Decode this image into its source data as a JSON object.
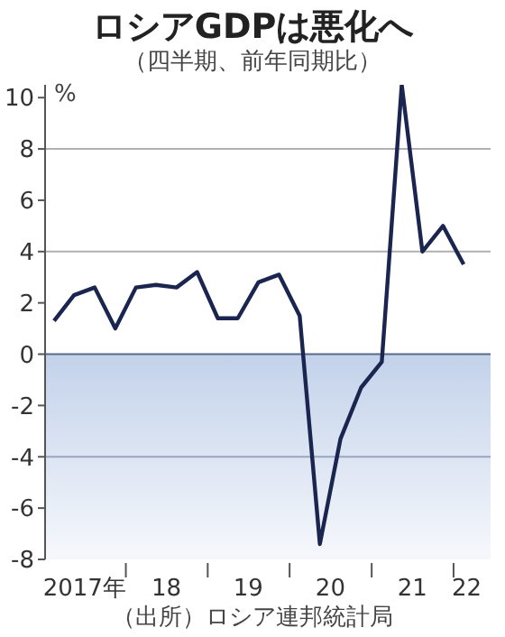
{
  "chart_data": {
    "type": "line",
    "title": "ロシアGDPは悪化へ",
    "subtitle": "（四半期、前年同期比）",
    "ylabel": "%",
    "annotations": [
      "（出所）ロシア連邦統計局"
    ],
    "x": [
      "2017-02-15",
      "2017-05-15",
      "2017-08-15",
      "2017-11-15",
      "2018-02-15",
      "2018-05-15",
      "2018-08-15",
      "2018-11-15",
      "2019-02-15",
      "2019-05-15",
      "2019-08-15",
      "2019-11-15",
      "2020-02-15",
      "2020-05-15",
      "2020-08-15",
      "2020-11-15",
      "2021-02-15",
      "2021-05-15",
      "2021-08-15",
      "2021-11-15",
      "2022-02-15"
    ],
    "series": [
      {
        "color": "#1a2550",
        "values": [
          1.3,
          2.3,
          2.6,
          1.0,
          2.6,
          2.7,
          2.6,
          3.2,
          1.4,
          1.4,
          2.8,
          3.1,
          1.5,
          -7.4,
          -3.3,
          -1.3,
          -0.3,
          10.5,
          4.0,
          5.0,
          3.5
        ]
      }
    ],
    "xlim": [
      "2017-01-06",
      "2022-06-15"
    ],
    "xticks": [
      {
        "value": "2017-07-01",
        "label": "2017年"
      },
      {
        "value": "2018-01-01",
        "label": null
      },
      {
        "value": "2018-07-01",
        "label": "18"
      },
      {
        "value": "2019-01-01",
        "label": null
      },
      {
        "value": "2019-07-01",
        "label": "19"
      },
      {
        "value": "2020-01-01",
        "label": null
      },
      {
        "value": "2020-07-01",
        "label": "20"
      },
      {
        "value": "2021-01-01",
        "label": null
      },
      {
        "value": "2021-07-01",
        "label": "21"
      },
      {
        "value": "2022-01-01",
        "label": null
      },
      {
        "value": "2022-03-01",
        "label": "22"
      }
    ],
    "ylim": [
      -8,
      10.5
    ],
    "yticks": [
      -8,
      -6,
      -4,
      -2,
      0,
      2,
      4,
      6,
      8,
      10
    ],
    "ref_lines": [
      {
        "axis": "y",
        "value": 8,
        "color": "#b0b0b0"
      },
      {
        "axis": "y",
        "value": 4,
        "color": "#b0b0b0"
      },
      {
        "axis": "y",
        "value": -4,
        "color": "#9aa6bb"
      },
      {
        "axis": "y",
        "value": 0,
        "color": "#5a6a8a"
      }
    ],
    "bands": [
      {
        "axis": "y",
        "from": -8,
        "to": 0,
        "color": "#c3d2ea"
      }
    ],
    "marker": "none",
    "line_style": "solid"
  }
}
